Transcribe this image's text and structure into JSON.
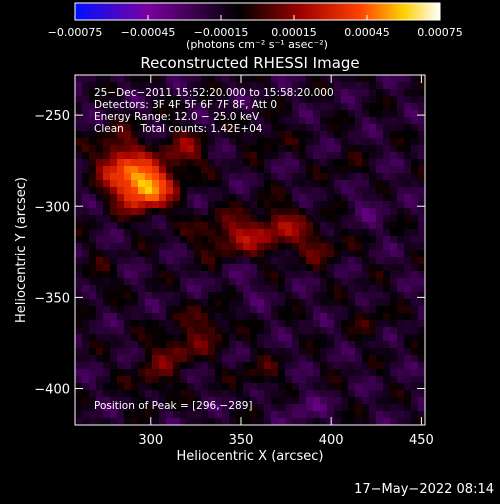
{
  "chart_data": {
    "type": "heatmap",
    "title": "Reconstructed RHESSI Image",
    "xlabel": "Heliocentric X (arcsec)",
    "ylabel": "Heliocentric Y (arcsec)",
    "xlim": [
      258,
      452
    ],
    "ylim": [
      -420,
      -228
    ],
    "xticks": [
      300,
      350,
      400,
      450
    ],
    "yticks": [
      -250,
      -300,
      -350,
      -400
    ],
    "xtick_labels": [
      "300",
      "350",
      "400",
      "450"
    ],
    "ytick_labels": [
      "−250",
      "−300",
      "−350",
      "−400"
    ],
    "colorbar": {
      "range": [
        -0.00075,
        0.00075
      ],
      "ticks": [
        -0.00075,
        -0.00045,
        -0.00015,
        0.00015,
        0.00045,
        0.00075
      ],
      "tick_labels": [
        "−0.00075",
        "−0.00045",
        "−0.00015",
        "0.00015",
        "0.00045",
        "0.00075"
      ],
      "units_label": "(photons cm⁻² s⁻¹ asec⁻²)",
      "colors": [
        "#0010ff",
        "#7a00a0",
        "#000000",
        "#a00000",
        "#ff4000",
        "#ffd000",
        "#ffffff"
      ]
    },
    "annotations": [
      "25−Dec−2011 15:52:20.000 to 15:58:20.000",
      "Detectors: 3F 4F 5F 6F 7F 8F, Att 0",
      "Energy Range: 12.0 − 25.0 keV",
      "Clean     Total counts: 1.42E+04",
      "Position of Peak = [296,−289]"
    ],
    "peak": [
      296,
      -289
    ],
    "sources": [
      {
        "x": 296,
        "y": -289,
        "amp": 0.00078,
        "sx": 11,
        "sy": 9
      },
      {
        "x": 282,
        "y": -274,
        "amp": 0.00038,
        "sx": 9,
        "sy": 10
      },
      {
        "x": 318,
        "y": -270,
        "amp": 0.00026,
        "sx": 9,
        "sy": 8
      },
      {
        "x": 345,
        "y": -316,
        "amp": 0.0003,
        "sx": 14,
        "sy": 8
      },
      {
        "x": 372,
        "y": -312,
        "amp": 0.00026,
        "sx": 12,
        "sy": 9
      },
      {
        "x": 395,
        "y": -322,
        "amp": 0.00018,
        "sx": 10,
        "sy": 7
      },
      {
        "x": 365,
        "y": -262,
        "amp": 0.00015,
        "sx": 8,
        "sy": 6
      },
      {
        "x": 408,
        "y": -280,
        "amp": 0.00012,
        "sx": 6,
        "sy": 6
      },
      {
        "x": 315,
        "y": -378,
        "amp": 0.00024,
        "sx": 10,
        "sy": 8
      },
      {
        "x": 333,
        "y": -364,
        "amp": 0.0002,
        "sx": 9,
        "sy": 8
      },
      {
        "x": 300,
        "y": -395,
        "amp": 0.00018,
        "sx": 8,
        "sy": 8
      },
      {
        "x": 360,
        "y": -392,
        "amp": 0.00014,
        "sx": 8,
        "sy": 7
      },
      {
        "x": 422,
        "y": -362,
        "amp": 0.00012,
        "sx": 7,
        "sy": 8
      },
      {
        "x": 270,
        "y": -340,
        "amp": 0.0001,
        "sx": 7,
        "sy": 8
      },
      {
        "x": 385,
        "y": -410,
        "amp": -0.00015,
        "sx": 7,
        "sy": 6
      },
      {
        "x": 420,
        "y": -300,
        "amp": -8e-05,
        "sx": 9,
        "sy": 9
      },
      {
        "x": 350,
        "y": -345,
        "amp": -7e-05,
        "sx": 10,
        "sy": 8
      }
    ]
  },
  "timestamp": "17−May−2022 08:14"
}
